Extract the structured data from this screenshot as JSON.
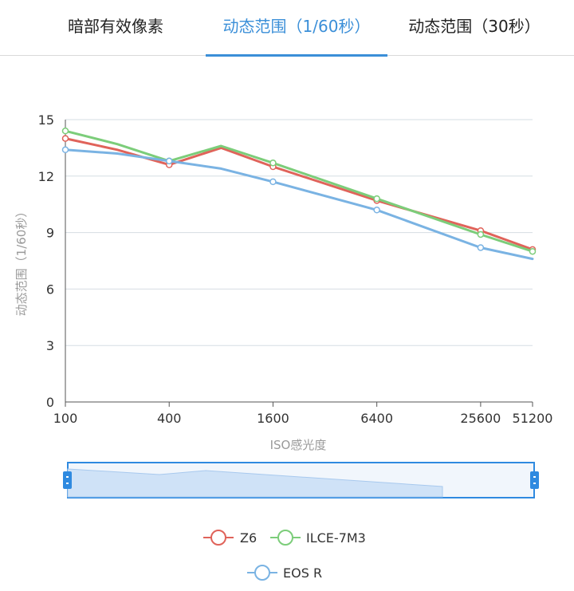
{
  "tabs": [
    {
      "label": "暗部有效像素",
      "active": false
    },
    {
      "label": "动态范围（1/60秒）",
      "active": true
    },
    {
      "label": "动态范围（30秒）",
      "active": false
    }
  ],
  "colors": {
    "accent": "#3b8fd8",
    "z6": "#e0635a",
    "ilce": "#7ccd7a",
    "eosr": "#7ab3e3"
  },
  "chart_data": {
    "type": "line",
    "xlabel": "ISO感光度",
    "ylabel": "动态范围（1/60秒）",
    "x_ticks": [
      "100",
      "400",
      "1600",
      "6400",
      "25600",
      "51200"
    ],
    "x_scale": "log2",
    "ylim": [
      0,
      15
    ],
    "y_ticks": [
      "0",
      "3",
      "6",
      "9",
      "12",
      "15"
    ],
    "grid": true,
    "legend_position": "bottom",
    "series": [
      {
        "name": "Z6",
        "color": "#e0635a",
        "points": [
          [
            100,
            14.0
          ],
          [
            200,
            13.4
          ],
          [
            400,
            12.6
          ],
          [
            800,
            13.5
          ],
          [
            1600,
            12.5
          ],
          [
            6400,
            10.7
          ],
          [
            25600,
            9.1
          ],
          [
            51200,
            8.1
          ]
        ],
        "markers": [
          100,
          400,
          1600,
          6400,
          25600,
          51200
        ]
      },
      {
        "name": "ILCE-7M3",
        "color": "#7ccd7a",
        "points": [
          [
            100,
            14.4
          ],
          [
            200,
            13.7
          ],
          [
            400,
            12.8
          ],
          [
            800,
            13.6
          ],
          [
            1600,
            12.7
          ],
          [
            6400,
            10.8
          ],
          [
            25600,
            8.9
          ],
          [
            51200,
            8.0
          ]
        ],
        "markers": [
          100,
          400,
          1600,
          6400,
          25600,
          51200
        ]
      },
      {
        "name": "EOS R",
        "color": "#7ab3e3",
        "points": [
          [
            100,
            13.4
          ],
          [
            200,
            13.2
          ],
          [
            400,
            12.8
          ],
          [
            800,
            12.4
          ],
          [
            1600,
            11.7
          ],
          [
            6400,
            10.2
          ],
          [
            25600,
            8.2
          ],
          [
            51200,
            7.6
          ]
        ],
        "markers": [
          100,
          400,
          1600,
          6400,
          25600
        ]
      }
    ]
  }
}
